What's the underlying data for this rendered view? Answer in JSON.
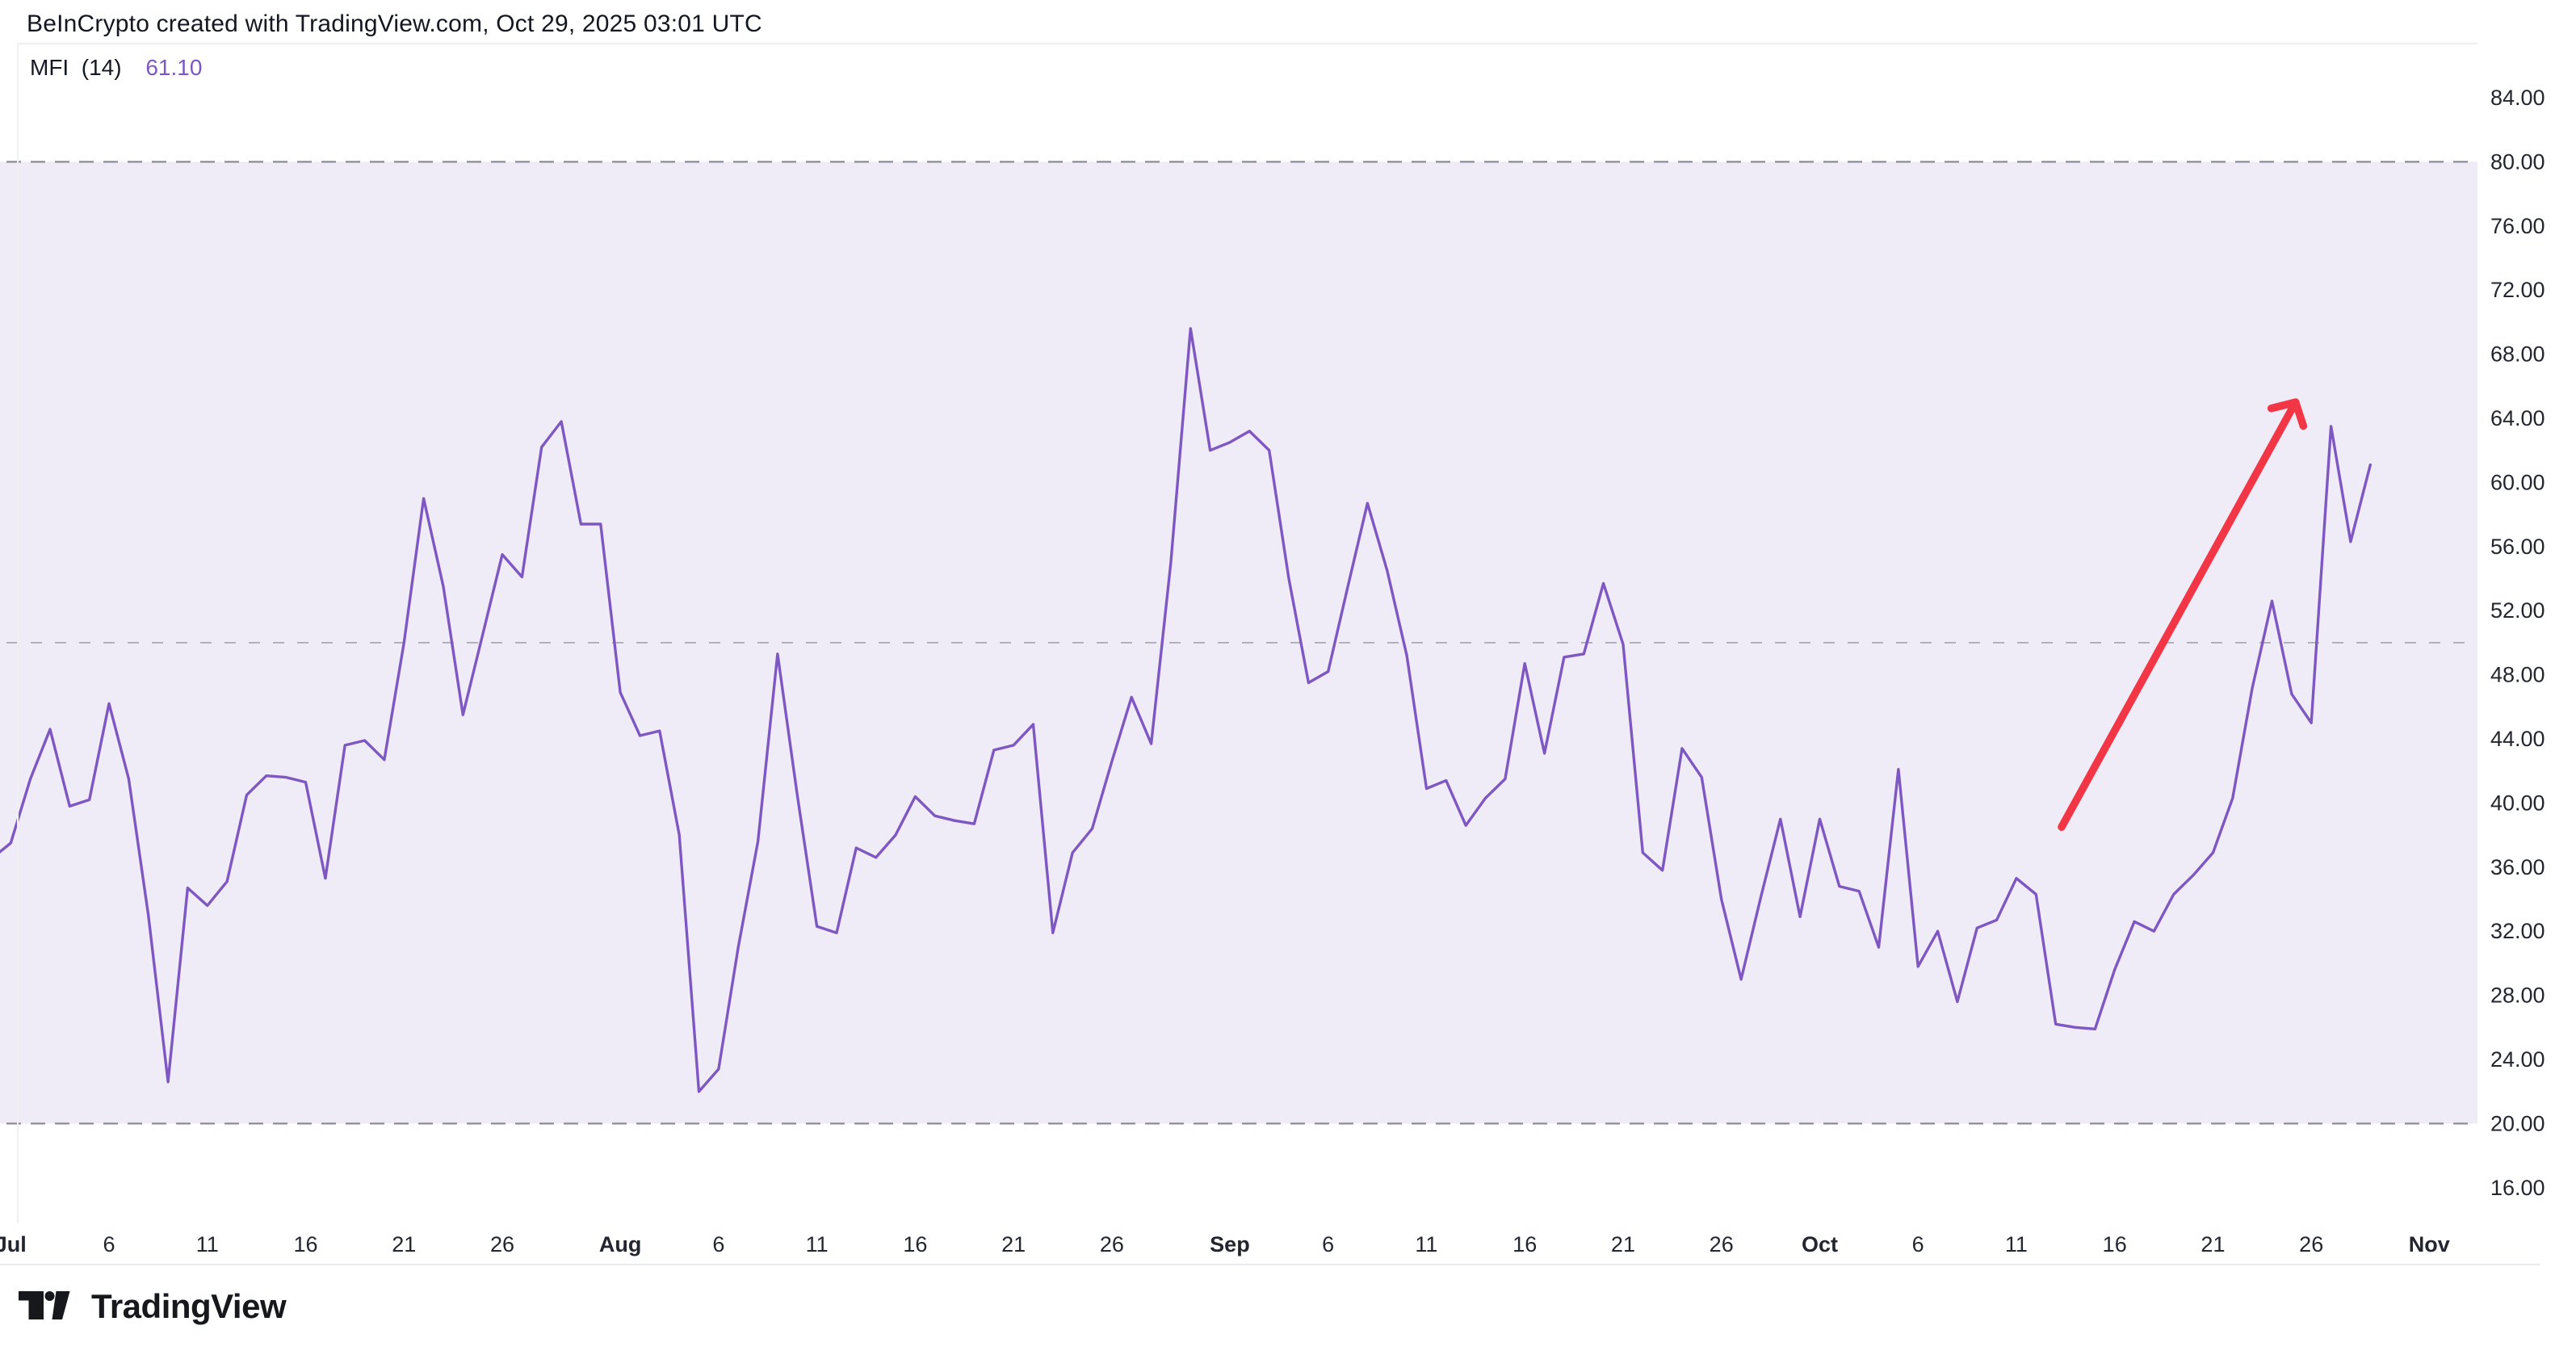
{
  "header": {
    "title": "BeInCrypto created with TradingView.com, Oct 29, 2025 03:01 UTC"
  },
  "indicator": {
    "name": "MFI",
    "params": "(14)",
    "value": "61.10"
  },
  "footer": {
    "logo_text": "TradingView",
    "logo_icon": "tradingview-mark"
  },
  "chart_data": {
    "type": "line",
    "title": "MFI (14)",
    "ylabel": "MFI",
    "xlabel": "",
    "grid": "off",
    "legend_position": "top-left",
    "y_axis": {
      "ticks": [
        "84.00",
        "80.00",
        "76.00",
        "72.00",
        "68.00",
        "64.00",
        "60.00",
        "56.00",
        "52.00",
        "48.00",
        "44.00",
        "40.00",
        "36.00",
        "32.00",
        "28.00",
        "24.00",
        "20.00",
        "16.00"
      ],
      "range": [
        13.5,
        86.5
      ]
    },
    "x_axis": {
      "ticks": [
        {
          "label": "Jul",
          "day": 0,
          "bold": true
        },
        {
          "label": "6",
          "day": 5,
          "bold": false
        },
        {
          "label": "11",
          "day": 10,
          "bold": false
        },
        {
          "label": "16",
          "day": 15,
          "bold": false
        },
        {
          "label": "21",
          "day": 20,
          "bold": false
        },
        {
          "label": "26",
          "day": 25,
          "bold": false
        },
        {
          "label": "Aug",
          "day": 31,
          "bold": true
        },
        {
          "label": "6",
          "day": 36,
          "bold": false
        },
        {
          "label": "11",
          "day": 41,
          "bold": false
        },
        {
          "label": "16",
          "day": 46,
          "bold": false
        },
        {
          "label": "21",
          "day": 51,
          "bold": false
        },
        {
          "label": "26",
          "day": 56,
          "bold": false
        },
        {
          "label": "Sep",
          "day": 62,
          "bold": true
        },
        {
          "label": "6",
          "day": 67,
          "bold": false
        },
        {
          "label": "11",
          "day": 72,
          "bold": false
        },
        {
          "label": "16",
          "day": 77,
          "bold": false
        },
        {
          "label": "21",
          "day": 82,
          "bold": false
        },
        {
          "label": "26",
          "day": 87,
          "bold": false
        },
        {
          "label": "Oct",
          "day": 92,
          "bold": true
        },
        {
          "label": "6",
          "day": 97,
          "bold": false
        },
        {
          "label": "11",
          "day": 102,
          "bold": false
        },
        {
          "label": "16",
          "day": 107,
          "bold": false
        },
        {
          "label": "21",
          "day": 112,
          "bold": false
        },
        {
          "label": "26",
          "day": 117,
          "bold": false
        },
        {
          "label": "Nov",
          "day": 123,
          "bold": true
        }
      ]
    },
    "levels": {
      "overbought": 80,
      "midline": 50,
      "oversold": 20
    },
    "band_fill_range": [
      20,
      80
    ],
    "series": [
      {
        "name": "MFI (14)",
        "start_date": "2025-06-30",
        "interval": "1D",
        "first_day_index": -1,
        "values": [
          36.5,
          37.5,
          41.5,
          44.6,
          39.8,
          40.2,
          46.2,
          41.5,
          33.0,
          22.6,
          34.7,
          33.6,
          35.1,
          40.5,
          41.7,
          41.6,
          41.3,
          35.3,
          43.6,
          43.9,
          42.7,
          50.0,
          59.0,
          53.5,
          45.5,
          50.5,
          55.5,
          54.1,
          62.2,
          63.8,
          57.4,
          57.4,
          46.9,
          44.2,
          44.5,
          38.0,
          22.0,
          23.4,
          31.0,
          37.6,
          49.3,
          40.5,
          32.3,
          31.9,
          37.2,
          36.6,
          38.0,
          40.4,
          39.2,
          38.9,
          38.7,
          43.3,
          43.6,
          44.9,
          31.9,
          36.9,
          38.4,
          42.6,
          46.6,
          43.7,
          55.0,
          69.6,
          62.0,
          62.5,
          63.2,
          62.0,
          54.0,
          47.5,
          48.2,
          53.5,
          58.7,
          54.5,
          49.2,
          40.9,
          41.4,
          38.6,
          40.3,
          41.5,
          48.7,
          43.1,
          49.1,
          49.3,
          53.7,
          49.9,
          36.9,
          35.8,
          43.4,
          41.6,
          34.0,
          29.0,
          34.1,
          39.0,
          32.9,
          39.0,
          34.8,
          34.5,
          31.0,
          42.1,
          29.8,
          32.0,
          27.6,
          32.2,
          32.7,
          35.3,
          34.3,
          26.2,
          26.0,
          25.9,
          29.6,
          32.6,
          32.0,
          34.3,
          35.5,
          36.9,
          40.3,
          47.2,
          52.6,
          46.8,
          45.0,
          63.5,
          56.3,
          61.1
        ]
      }
    ],
    "last_value": 61.1,
    "annotations": {
      "arrow": {
        "from_day": 104.3,
        "from_value": 38.5,
        "to_day": 116.2,
        "to_value": 65.0,
        "color": "#F23645"
      }
    },
    "colors": {
      "line": "#7E57C2",
      "value_text": "#7E57C2",
      "band_fill": "#EFECF8",
      "level_line": "#8A8D97",
      "mid_line": "#A7AAB4",
      "axis_text": "#22262F",
      "arrow": "#F23645",
      "title_text": "#131722"
    }
  }
}
